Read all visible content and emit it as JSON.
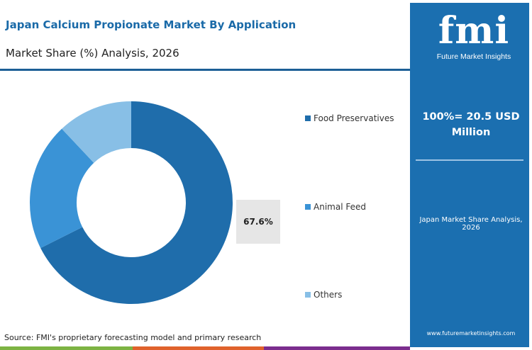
{
  "header": {
    "title": "Japan Calcium Propionate Market By Application",
    "subtitle": "Market Share (%) Analysis, 2026"
  },
  "panel": {
    "logo_mark": "fmi",
    "logo_text": "Future Market Insights",
    "total": "100%= 20.5 USD Million",
    "region_label": "Japan Market Share Analysis, 2026",
    "url": "www.futuremarketinsights.com"
  },
  "footer": {
    "source": "Source: FMI's proprietary forecasting model and primary research",
    "bar_colors": [
      "#7db343",
      "#e0622c",
      "#7b2d8e"
    ]
  },
  "chart_data": {
    "type": "pie",
    "variant": "donut",
    "categories": [
      "Food Preservatives",
      "Animal Feed",
      "Others"
    ],
    "values": [
      67.6,
      20.4,
      12.0
    ],
    "colors": [
      "#1f6dab",
      "#3a93d6",
      "#88bfe6"
    ],
    "data_labels": [
      "67.6%"
    ],
    "legend_position": "right"
  }
}
